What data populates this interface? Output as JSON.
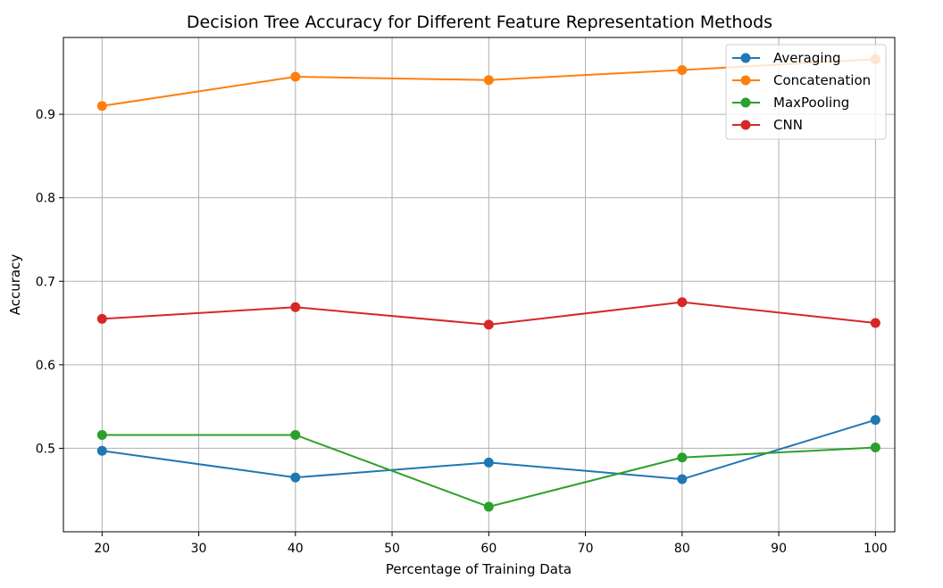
{
  "chart_data": {
    "type": "line",
    "title": "Decision Tree Accuracy for Different Feature Representation Methods",
    "xlabel": "Percentage of Training Data",
    "ylabel": "Accuracy",
    "x": [
      20,
      40,
      60,
      80,
      100
    ],
    "xlim": [
      16,
      102
    ],
    "ylim": [
      0.4,
      0.992
    ],
    "xticks": [
      20,
      30,
      40,
      50,
      60,
      70,
      80,
      90,
      100
    ],
    "yticks": [
      0.5,
      0.6,
      0.7,
      0.8,
      0.9
    ],
    "ytick_labels": [
      "0.5",
      "0.6",
      "0.7",
      "0.8",
      "0.9"
    ],
    "grid": true,
    "legend_position": "top-right",
    "series": [
      {
        "name": "Averaging",
        "color": "#1f77b4",
        "values": [
          0.497,
          0.465,
          0.483,
          0.463,
          0.534
        ]
      },
      {
        "name": "Concatenation",
        "color": "#ff7f0e",
        "values": [
          0.91,
          0.945,
          0.941,
          0.953,
          0.966
        ]
      },
      {
        "name": "MaxPooling",
        "color": "#2ca02c",
        "values": [
          0.516,
          0.516,
          0.43,
          0.489,
          0.501
        ]
      },
      {
        "name": "CNN",
        "color": "#d62728",
        "values": [
          0.655,
          0.669,
          0.648,
          0.675,
          0.65
        ]
      }
    ]
  }
}
